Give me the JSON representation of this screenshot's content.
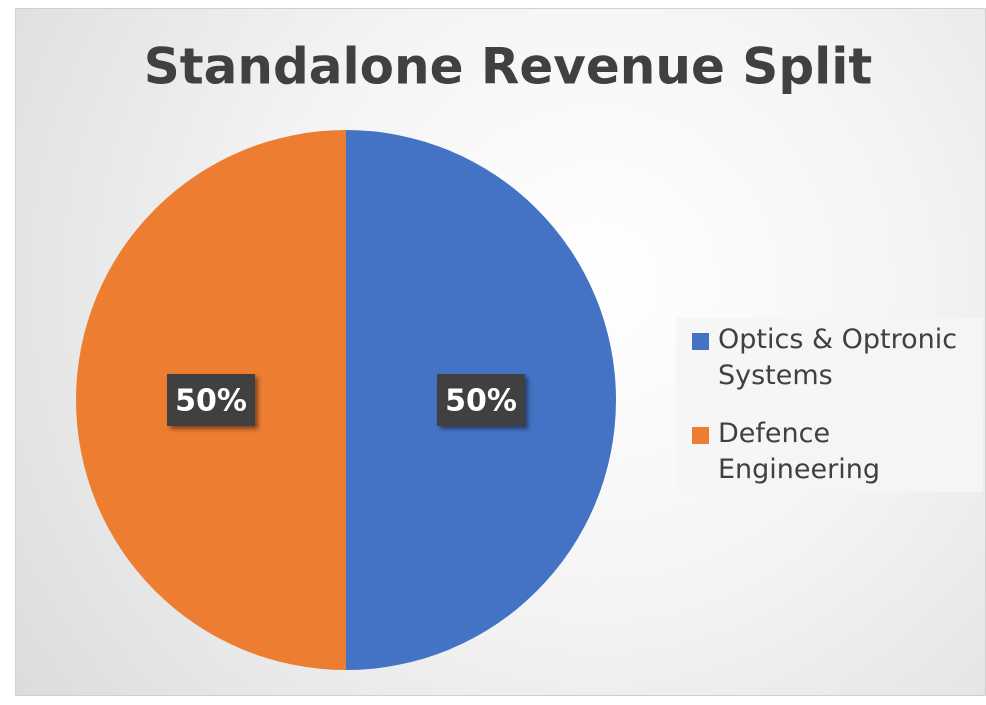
{
  "chart_data": {
    "type": "pie",
    "title": "Standalone Revenue Split",
    "categories": [
      "Optics & Optronic Systems",
      "Defence Engineering"
    ],
    "values": [
      50,
      50
    ],
    "value_labels": [
      "50%",
      "50%"
    ],
    "colors": [
      "#4472c4",
      "#ed7d31"
    ],
    "legend": "right"
  }
}
